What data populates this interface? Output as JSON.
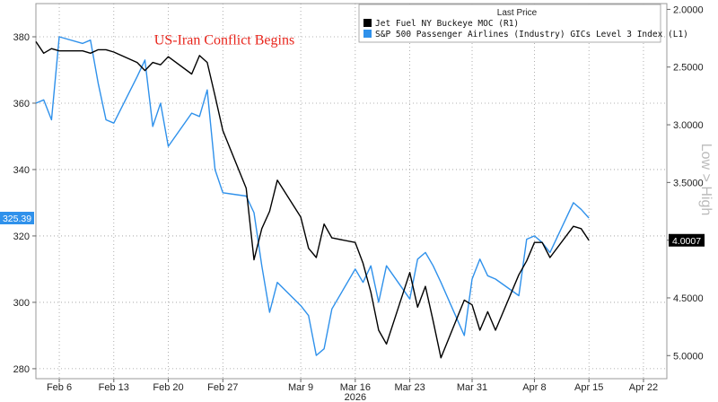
{
  "chart_data": {
    "type": "line",
    "legend": {
      "title": "Last Price",
      "placement": "top-right"
    },
    "annotation": {
      "text": "US-Iran Conflict Begins",
      "color": "#e8251c",
      "x": "2026-02-13",
      "y": 379
    },
    "x_axis": {
      "range": [
        "2026-02-03",
        "2026-04-25"
      ],
      "ticks": [
        {
          "label": "Feb 6",
          "date": "2026-02-06"
        },
        {
          "label": "Feb 13",
          "date": "2026-02-13"
        },
        {
          "label": "Feb 20",
          "date": "2026-02-20"
        },
        {
          "label": "Feb 27",
          "date": "2026-02-27"
        },
        {
          "label": "Mar 9",
          "date": "2026-03-09"
        },
        {
          "label": "Mar 16",
          "date": "2026-03-16"
        },
        {
          "label": "Mar 23",
          "date": "2026-03-23"
        },
        {
          "label": "Mar 31",
          "date": "2026-03-31"
        },
        {
          "label": "Apr 8",
          "date": "2026-04-08"
        },
        {
          "label": "Apr 15",
          "date": "2026-04-15"
        },
        {
          "label": "Apr 22",
          "date": "2026-04-22"
        }
      ],
      "year_label": "2026",
      "year_date": "2026-03-16"
    },
    "y_left": {
      "range": [
        277,
        390
      ],
      "ticks": [
        280,
        300,
        320,
        340,
        360,
        380
      ]
    },
    "y_right": {
      "title": "Low > High",
      "inverted": true,
      "range": [
        1.95,
        5.2
      ],
      "ticks": [
        2.0,
        2.5,
        3.0,
        3.5,
        4.0,
        4.5,
        5.0
      ],
      "tick_labels": [
        "2.0000",
        "2.5000",
        "3.0000",
        "3.5000",
        "4.0000",
        "4.5000",
        "5.0000"
      ]
    },
    "series": [
      {
        "name": "Jet Fuel NY Buckeye MOC (R1)",
        "axis": "right",
        "color": "#000000",
        "last_value_label": "4.0007",
        "points": [
          [
            "2026-02-03",
            2.28
          ],
          [
            "2026-02-04",
            2.38
          ],
          [
            "2026-02-05",
            2.34
          ],
          [
            "2026-02-06",
            2.36
          ],
          [
            "2026-02-09",
            2.36
          ],
          [
            "2026-02-10",
            2.38
          ],
          [
            "2026-02-11",
            2.35
          ],
          [
            "2026-02-12",
            2.35
          ],
          [
            "2026-02-13",
            2.37
          ],
          [
            "2026-02-16",
            2.46
          ],
          [
            "2026-02-17",
            2.53
          ],
          [
            "2026-02-18",
            2.46
          ],
          [
            "2026-02-19",
            2.48
          ],
          [
            "2026-02-20",
            2.41
          ],
          [
            "2026-02-23",
            2.56
          ],
          [
            "2026-02-24",
            2.4
          ],
          [
            "2026-02-25",
            2.46
          ],
          [
            "2026-02-26",
            2.75
          ],
          [
            "2026-02-27",
            3.05
          ],
          [
            "2026-03-02",
            3.55
          ],
          [
            "2026-03-03",
            4.17
          ],
          [
            "2026-03-04",
            3.9
          ],
          [
            "2026-03-05",
            3.75
          ],
          [
            "2026-03-06",
            3.48
          ],
          [
            "2026-03-09",
            3.8
          ],
          [
            "2026-03-10",
            4.07
          ],
          [
            "2026-03-11",
            4.15
          ],
          [
            "2026-03-12",
            3.86
          ],
          [
            "2026-03-13",
            3.98
          ],
          [
            "2026-03-16",
            4.02
          ],
          [
            "2026-03-17",
            4.2
          ],
          [
            "2026-03-18",
            4.45
          ],
          [
            "2026-03-19",
            4.78
          ],
          [
            "2026-03-20",
            4.9
          ],
          [
            "2026-03-23",
            4.28
          ],
          [
            "2026-03-24",
            4.58
          ],
          [
            "2026-03-25",
            4.4
          ],
          [
            "2026-03-26",
            4.7
          ],
          [
            "2026-03-27",
            5.02
          ],
          [
            "2026-03-30",
            4.52
          ],
          [
            "2026-03-31",
            4.56
          ],
          [
            "2026-04-01",
            4.78
          ],
          [
            "2026-04-02",
            4.62
          ],
          [
            "2026-04-03",
            4.78
          ],
          [
            "2026-04-06",
            4.3
          ],
          [
            "2026-04-07",
            4.18
          ],
          [
            "2026-04-08",
            4.02
          ],
          [
            "2026-04-09",
            4.02
          ],
          [
            "2026-04-10",
            4.15
          ],
          [
            "2026-04-13",
            3.88
          ],
          [
            "2026-04-14",
            3.9
          ],
          [
            "2026-04-15",
            4.0007
          ]
        ]
      },
      {
        "name": "S&P 500 Passenger Airlines (Industry) GICs Level 3 Index (L1)",
        "axis": "left",
        "color": "#2f91eb",
        "last_value_label": "325.39",
        "points": [
          [
            "2026-02-03",
            360
          ],
          [
            "2026-02-04",
            361
          ],
          [
            "2026-02-05",
            355
          ],
          [
            "2026-02-06",
            380
          ],
          [
            "2026-02-09",
            378
          ],
          [
            "2026-02-10",
            379
          ],
          [
            "2026-02-11",
            366
          ],
          [
            "2026-02-12",
            355
          ],
          [
            "2026-02-13",
            354
          ],
          [
            "2026-02-16",
            368
          ],
          [
            "2026-02-17",
            373
          ],
          [
            "2026-02-18",
            353
          ],
          [
            "2026-02-19",
            360
          ],
          [
            "2026-02-20",
            347
          ],
          [
            "2026-02-23",
            357
          ],
          [
            "2026-02-24",
            356
          ],
          [
            "2026-02-25",
            364
          ],
          [
            "2026-02-26",
            340
          ],
          [
            "2026-02-27",
            333
          ],
          [
            "2026-03-02",
            332
          ],
          [
            "2026-03-03",
            327
          ],
          [
            "2026-03-04",
            311
          ],
          [
            "2026-03-05",
            297
          ],
          [
            "2026-03-06",
            306
          ],
          [
            "2026-03-09",
            299
          ],
          [
            "2026-03-10",
            296
          ],
          [
            "2026-03-11",
            284
          ],
          [
            "2026-03-12",
            286
          ],
          [
            "2026-03-13",
            298
          ],
          [
            "2026-03-16",
            310
          ],
          [
            "2026-03-17",
            306
          ],
          [
            "2026-03-18",
            311
          ],
          [
            "2026-03-19",
            300
          ],
          [
            "2026-03-20",
            311
          ],
          [
            "2026-03-23",
            301
          ],
          [
            "2026-03-24",
            313
          ],
          [
            "2026-03-25",
            315
          ],
          [
            "2026-03-26",
            311
          ],
          [
            "2026-03-27",
            306
          ],
          [
            "2026-03-30",
            290
          ],
          [
            "2026-03-31",
            307
          ],
          [
            "2026-04-01",
            313
          ],
          [
            "2026-04-02",
            308
          ],
          [
            "2026-04-03",
            307
          ],
          [
            "2026-04-06",
            302
          ],
          [
            "2026-04-07",
            319
          ],
          [
            "2026-04-08",
            320
          ],
          [
            "2026-04-09",
            318
          ],
          [
            "2026-04-10",
            315
          ],
          [
            "2026-04-13",
            330
          ],
          [
            "2026-04-14",
            328
          ],
          [
            "2026-04-15",
            325.39
          ]
        ]
      }
    ]
  }
}
